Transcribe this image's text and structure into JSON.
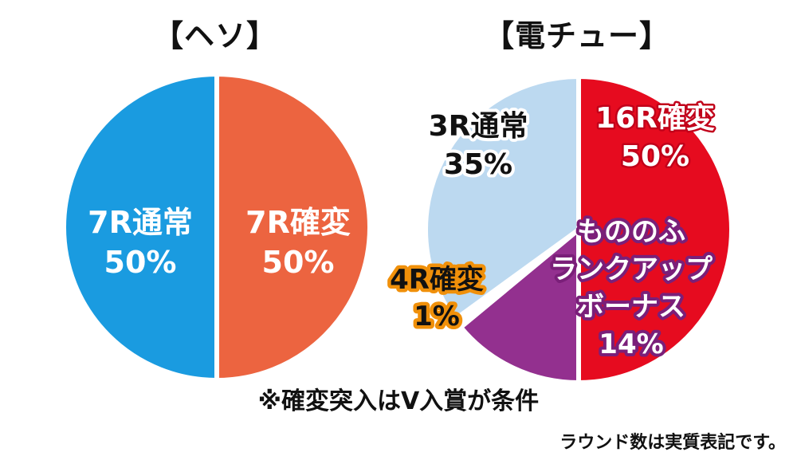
{
  "colors": {
    "heso_normal": "#1a9be0",
    "heso_kakuhen": "#ec6440",
    "den_16r": "#e60b1f",
    "den_mononofu": "#93308f",
    "den_4r": "#ffffff",
    "den_3r": "#bcd9f0"
  },
  "chart_data": [
    {
      "type": "pie",
      "title": "【ヘソ】",
      "slices": [
        {
          "label": "7R確変",
          "value": 50,
          "value_label": "50%",
          "color": "#ec6440"
        },
        {
          "label": "7R通常",
          "value": 50,
          "value_label": "50%",
          "color": "#1a9be0"
        }
      ]
    },
    {
      "type": "pie",
      "title": "【電チュー】",
      "slices": [
        {
          "label": "16R確変",
          "value": 50,
          "value_label": "50%",
          "color": "#e60b1f"
        },
        {
          "label": "もののふランクアップボーナス",
          "label_lines": [
            "もののふ",
            "ランクアップ",
            "ボーナス"
          ],
          "value": 14,
          "value_label": "14%",
          "color": "#93308f"
        },
        {
          "label": "4R確変",
          "value": 1,
          "value_label": "1%",
          "color": "#ffffff"
        },
        {
          "label": "3R通常",
          "value": 35,
          "value_label": "35%",
          "color": "#bcd9f0"
        }
      ]
    }
  ],
  "note": "※確変突入はV入賞が条件",
  "footnote": "ラウンド数は実質表記です。"
}
